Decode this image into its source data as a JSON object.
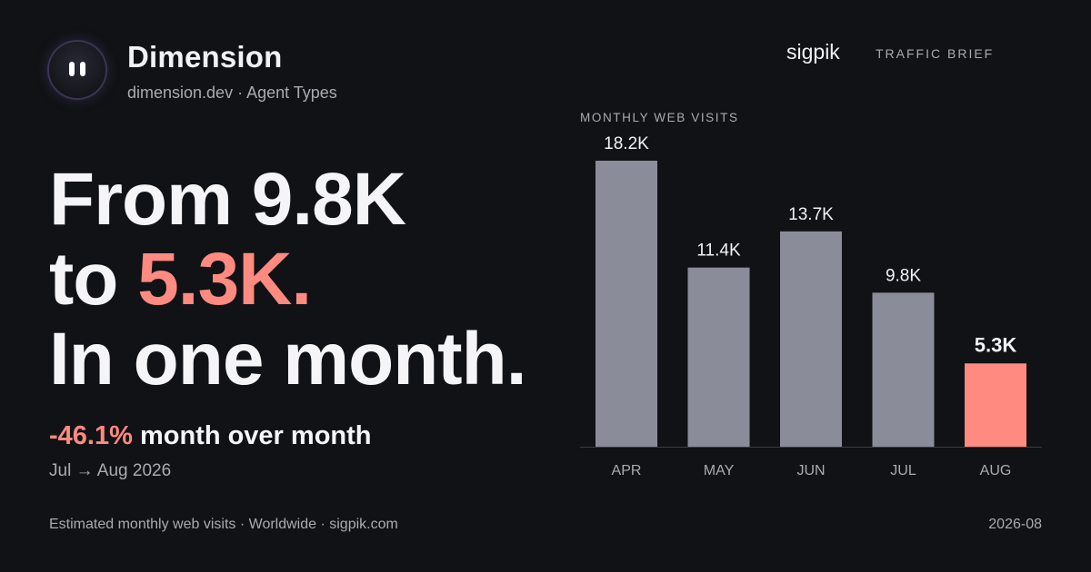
{
  "brand": {
    "name": "Dimension",
    "subtitle": "dimension.dev · Agent Types"
  },
  "publisher": {
    "name": "sigpik",
    "tag": "TRAFFIC BRIEF"
  },
  "headline": {
    "line1": "From 9.8K",
    "line2_prefix": "to ",
    "line2_accent": "5.3K.",
    "line3": "In one month."
  },
  "change": {
    "pct": "-46.1%",
    "label": " month over month",
    "period": "Jul → Aug 2026"
  },
  "footer": {
    "left": "Estimated monthly web visits · Worldwide · sigpik.com",
    "right": "2026-08"
  },
  "colors": {
    "bar": "#8a8d99",
    "highlight": "#ff8a80",
    "background": "#111215"
  },
  "chart_data": {
    "type": "bar",
    "title": "MONTHLY WEB VISITS",
    "categories": [
      "APR",
      "MAY",
      "JUN",
      "JUL",
      "AUG"
    ],
    "values": [
      18200,
      11400,
      13700,
      9800,
      5300
    ],
    "value_labels": [
      "18.2K",
      "11.4K",
      "13.7K",
      "9.8K",
      "5.3K"
    ],
    "highlight_index": 4,
    "ylim": [
      0,
      18200
    ],
    "grid": false
  }
}
